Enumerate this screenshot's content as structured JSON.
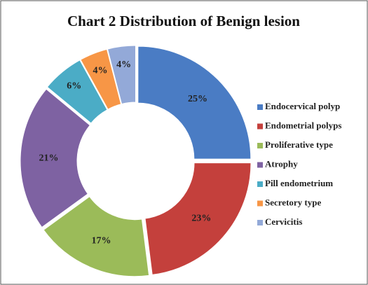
{
  "chart_data": {
    "type": "donut",
    "title": "Chart 2 Distribution  of Benign lesion",
    "categories": [
      "Endocervical polyp",
      "Endometrial polyps",
      "Proliferative type",
      "Atrophy",
      "Pill endometrium",
      "Secretory type",
      "Cervicitis"
    ],
    "values": [
      25,
      23,
      17,
      21,
      6,
      4,
      4
    ],
    "value_labels": [
      "25%",
      "23%",
      "17%",
      "21%",
      "6%",
      "4%",
      "4%"
    ],
    "colors": [
      "#4a7cc4",
      "#c4403c",
      "#9bbb59",
      "#7e62a2",
      "#4bacc6",
      "#f79646",
      "#93a9d8"
    ],
    "legend": "right"
  }
}
